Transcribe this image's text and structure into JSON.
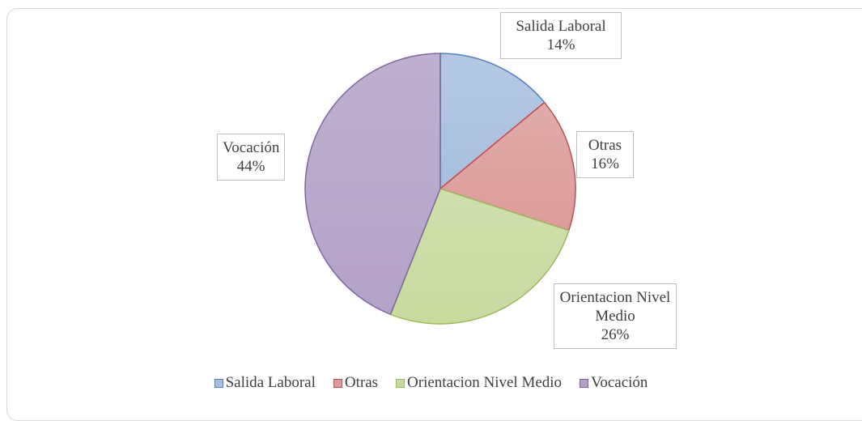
{
  "chart_data": {
    "type": "pie",
    "categories": [
      "Salida Laboral",
      "Otras",
      "Orientacion Nivel Medio",
      "Vocación"
    ],
    "values": [
      14,
      16,
      26,
      44
    ],
    "value_labels": [
      "14%",
      "16%",
      "26%",
      "44%"
    ],
    "colors": [
      "#a7bfdf",
      "#dc9c9a",
      "#c7da9f",
      "#b3a2c7"
    ],
    "border_colors": [
      "#4f81bd",
      "#c0504d",
      "#9bbb59",
      "#8064a2"
    ],
    "legend": "bottom"
  }
}
